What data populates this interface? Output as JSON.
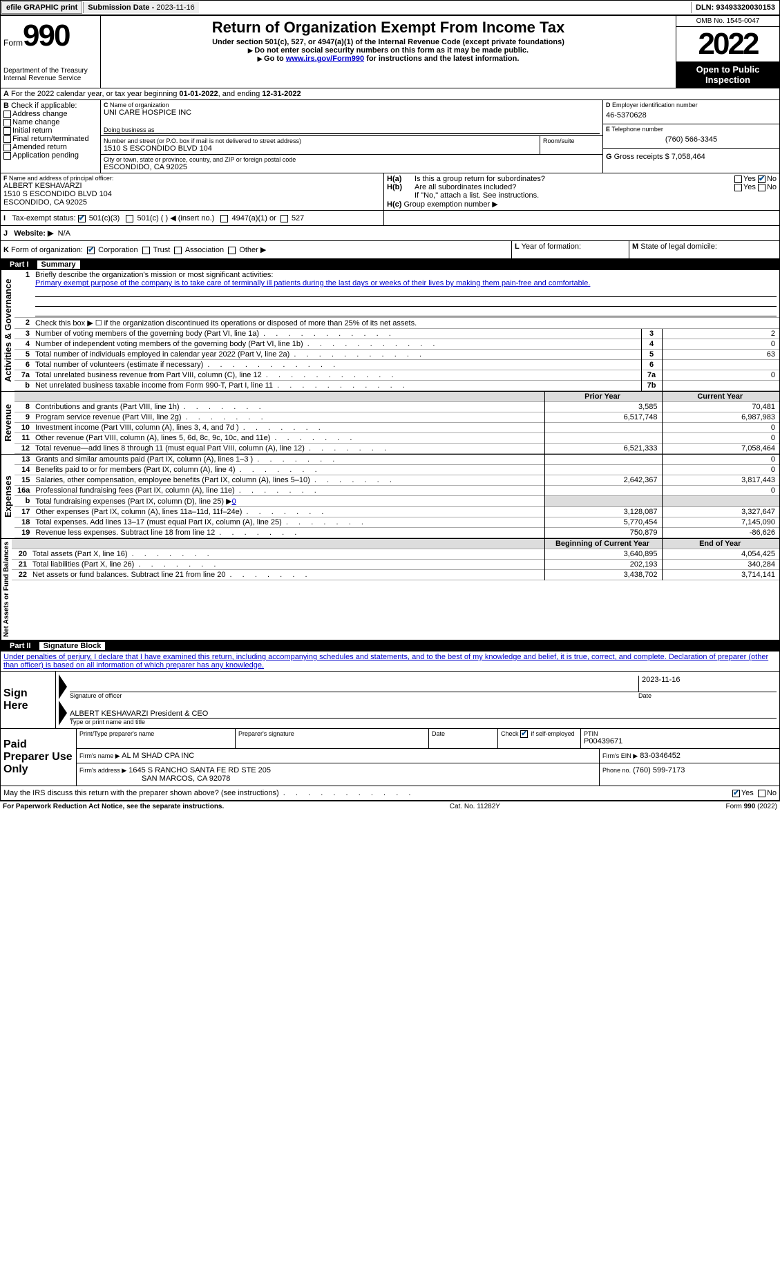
{
  "header_bar": {
    "efile": "efile GRAPHIC print",
    "sub_label": "Submission Date - ",
    "sub_date": "2023-11-16",
    "dln_label": "DLN: ",
    "dln": "93493320030153"
  },
  "top": {
    "form_label": "Form",
    "form_number": "990",
    "dept": "Department of the Treasury",
    "irs": "Internal Revenue Service",
    "title": "Return of Organization Exempt From Income Tax",
    "sub1": "Under section 501(c), 527, or 4947(a)(1) of the Internal Revenue Code (except private foundations)",
    "sub2": "Do not enter social security numbers on this form as it may be made public.",
    "sub3_a": "Go to ",
    "sub3_link": "www.irs.gov/Form990",
    "sub3_b": " for instructions and the latest information.",
    "omb": "OMB No. 1545-0047",
    "year": "2022",
    "otp": "Open to Public Inspection"
  },
  "A": {
    "text_a": "For the 2022 calendar year, or tax year beginning ",
    "begin": "01-01-2022",
    "text_b": ", and ending ",
    "end": "12-31-2022"
  },
  "B": {
    "label": "Check if applicable:",
    "opts": [
      "Address change",
      "Name change",
      "Initial return",
      "Final return/terminated",
      "Amended return",
      "Application pending"
    ]
  },
  "C": {
    "name_label": "Name of organization",
    "name": "UNI CARE HOSPICE INC",
    "dba_label": "Doing business as",
    "dba": "",
    "street_label": "Number and street (or P.O. box if mail is not delivered to street address)",
    "street": "1510 S ESCONDIDO BLVD 104",
    "room_label": "Room/suite",
    "city_label": "City or town, state or province, country, and ZIP or foreign postal code",
    "city": "ESCONDIDO, CA  92025"
  },
  "D": {
    "label": "Employer identification number",
    "val": "46-5370628"
  },
  "E": {
    "label": "Telephone number",
    "val": "(760) 566-3345"
  },
  "G": {
    "label": "Gross receipts $",
    "val": "7,058,464"
  },
  "F": {
    "label": "Name and address of principal officer:",
    "name": "ALBERT KESHAVARZI",
    "addr1": "1510 S ESCONDIDO BLVD 104",
    "addr2": "ESCONDIDO, CA  92025"
  },
  "H": {
    "a": "Is this a group return for subordinates?",
    "b": "Are all subordinates included?",
    "note": "If \"No,\" attach a list. See instructions.",
    "c": "Group exemption number ▶",
    "yes": "Yes",
    "no": "No"
  },
  "I": {
    "label": "Tax-exempt status:",
    "o1": "501(c)(3)",
    "o2": "501(c) (  ) ◀ (insert no.)",
    "o3": "4947(a)(1) or",
    "o4": "527"
  },
  "J": {
    "label": "Website: ▶",
    "val": "N/A"
  },
  "K": {
    "label": "Form of organization:",
    "o1": "Corporation",
    "o2": "Trust",
    "o3": "Association",
    "o4": "Other ▶"
  },
  "L": {
    "label": "Year of formation:",
    "val": ""
  },
  "M": {
    "label": "State of legal domicile:",
    "val": ""
  },
  "part1": {
    "num": "Part I",
    "title": "Summary"
  },
  "vlabels": {
    "ag": "Activities & Governance",
    "rev": "Revenue",
    "exp": "Expenses",
    "na": "Net Assets or Fund Balances"
  },
  "l1": {
    "intro": "Briefly describe the organization's mission or most significant activities:",
    "text": "Primary exempt purpose of the company is to take care of terminally ill patients during the last days or weeks of their lives by making them pain-free and comfortable."
  },
  "l2": "Check this box ▶ ☐ if the organization discontinued its operations or disposed of more than 25% of its net assets.",
  "lines_ag": [
    {
      "n": "3",
      "t": "Number of voting members of the governing body (Part VI, line 1a)",
      "b": "3",
      "v": "2"
    },
    {
      "n": "4",
      "t": "Number of independent voting members of the governing body (Part VI, line 1b)",
      "b": "4",
      "v": "0"
    },
    {
      "n": "5",
      "t": "Total number of individuals employed in calendar year 2022 (Part V, line 2a)",
      "b": "5",
      "v": "63"
    },
    {
      "n": "6",
      "t": "Total number of volunteers (estimate if necessary)",
      "b": "6",
      "v": ""
    },
    {
      "n": "7a",
      "t": "Total unrelated business revenue from Part VIII, column (C), line 12",
      "b": "7a",
      "v": "0"
    },
    {
      "n": "b",
      "t": "Net unrelated business taxable income from Form 990-T, Part I, line 11",
      "b": "7b",
      "v": ""
    }
  ],
  "col_hdrs": {
    "py": "Prior Year",
    "cy": "Current Year"
  },
  "lines_rev": [
    {
      "n": "8",
      "t": "Contributions and grants (Part VIII, line 1h)",
      "py": "3,585",
      "cy": "70,481"
    },
    {
      "n": "9",
      "t": "Program service revenue (Part VIII, line 2g)",
      "py": "6,517,748",
      "cy": "6,987,983"
    },
    {
      "n": "10",
      "t": "Investment income (Part VIII, column (A), lines 3, 4, and 7d )",
      "py": "",
      "cy": "0"
    },
    {
      "n": "11",
      "t": "Other revenue (Part VIII, column (A), lines 5, 6d, 8c, 9c, 10c, and 11e)",
      "py": "",
      "cy": "0"
    },
    {
      "n": "12",
      "t": "Total revenue—add lines 8 through 11 (must equal Part VIII, column (A), line 12)",
      "py": "6,521,333",
      "cy": "7,058,464"
    }
  ],
  "lines_exp": [
    {
      "n": "13",
      "t": "Grants and similar amounts paid (Part IX, column (A), lines 1–3 )",
      "py": "",
      "cy": "0"
    },
    {
      "n": "14",
      "t": "Benefits paid to or for members (Part IX, column (A), line 4)",
      "py": "",
      "cy": "0"
    },
    {
      "n": "15",
      "t": "Salaries, other compensation, employee benefits (Part IX, column (A), lines 5–10)",
      "py": "2,642,367",
      "cy": "3,817,443"
    },
    {
      "n": "16a",
      "t": "Professional fundraising fees (Part IX, column (A), line 11e)",
      "py": "",
      "cy": "0"
    },
    {
      "n": "b",
      "t": "Total fundraising expenses (Part IX, column (D), line 25) ▶",
      "linkval": "0",
      "py": "__SH__",
      "cy": "__SH__"
    },
    {
      "n": "17",
      "t": "Other expenses (Part IX, column (A), lines 11a–11d, 11f–24e)",
      "py": "3,128,087",
      "cy": "3,327,647"
    },
    {
      "n": "18",
      "t": "Total expenses. Add lines 13–17 (must equal Part IX, column (A), line 25)",
      "py": "5,770,454",
      "cy": "7,145,090"
    },
    {
      "n": "19",
      "t": "Revenue less expenses. Subtract line 18 from line 12",
      "py": "750,879",
      "cy": "-86,626"
    }
  ],
  "col_hdrs2": {
    "py": "Beginning of Current Year",
    "cy": "End of Year"
  },
  "lines_na": [
    {
      "n": "20",
      "t": "Total assets (Part X, line 16)",
      "py": "3,640,895",
      "cy": "4,054,425"
    },
    {
      "n": "21",
      "t": "Total liabilities (Part X, line 26)",
      "py": "202,193",
      "cy": "340,284"
    },
    {
      "n": "22",
      "t": "Net assets or fund balances. Subtract line 21 from line 20",
      "py": "3,438,702",
      "cy": "3,714,141"
    }
  ],
  "part2": {
    "num": "Part II",
    "title": "Signature Block"
  },
  "penalties": "Under penalties of perjury, I declare that I have examined this return, including accompanying schedules and statements, and to the best of my knowledge and belief, it is true, correct, and complete. Declaration of preparer (other than officer) is based on all information of which preparer has any knowledge.",
  "sign": {
    "here": "Sign Here",
    "sig_officer": "Signature of officer",
    "date_label": "Date",
    "date": "2023-11-16",
    "name": "ALBERT KESHAVARZI  President & CEO",
    "type_label": "Type or print name and title"
  },
  "paid": {
    "title": "Paid Preparer Use Only",
    "prep_name_label": "Print/Type preparer's name",
    "prep_sig_label": "Preparer's signature",
    "date_label": "Date",
    "check_label": "Check",
    "self_emp": "if self-employed",
    "ptin_label": "PTIN",
    "ptin": "P00439671",
    "firm_name_label": "Firm's name    ▶",
    "firm_name": "AL M SHAD CPA INC",
    "firm_ein_label": "Firm's EIN ▶",
    "firm_ein": "83-0346452",
    "firm_addr_label": "Firm's address ▶",
    "firm_addr1": "1645 S RANCHO SANTA FE RD STE 205",
    "firm_addr2": "SAN MARCOS, CA  92078",
    "phone_label": "Phone no.",
    "phone": "(760) 599-7173"
  },
  "discuss": {
    "q": "May the IRS discuss this return with the preparer shown above? (see instructions)",
    "yes": "Yes",
    "no": "No"
  },
  "footer": {
    "pra": "For Paperwork Reduction Act Notice, see the separate instructions.",
    "cat": "Cat. No. 11282Y",
    "form": "Form 990 (2022)"
  }
}
